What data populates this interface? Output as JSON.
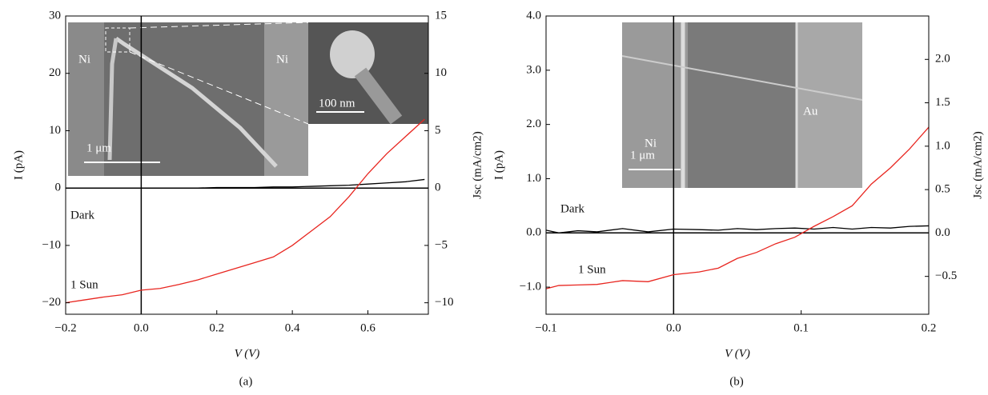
{
  "chart_data": [
    {
      "type": "line",
      "caption": "(a)",
      "x_label": "V (V)",
      "y_label": "I (pA)",
      "y2_label": "Jsc (mA/cm2)",
      "xlim": [
        -0.2,
        0.76
      ],
      "ylim": [
        -22,
        30
      ],
      "y2lim": [
        -11,
        15
      ],
      "xticks": [
        {
          "value": -0.2,
          "label": "−0.2"
        },
        {
          "value": 0,
          "label": "0.0"
        },
        {
          "value": 0.2,
          "label": "0.2"
        },
        {
          "value": 0.4,
          "label": "0.4"
        },
        {
          "value": 0.6,
          "label": "0.6"
        }
      ],
      "yticks": [
        {
          "value": -20,
          "label": "−20"
        },
        {
          "value": -10,
          "label": "−10"
        },
        0,
        10,
        20,
        30
      ],
      "y2ticks": [
        {
          "value": -10,
          "label": "−10"
        },
        {
          "value": -5,
          "label": "−5"
        },
        0,
        5,
        10,
        15
      ],
      "x": [
        -0.2,
        -0.15,
        -0.1,
        -0.05,
        0,
        0.05,
        0.1,
        0.15,
        0.2,
        0.25,
        0.3,
        0.35,
        0.4,
        0.45,
        0.5,
        0.55,
        0.6,
        0.65,
        0.7,
        0.75
      ],
      "series": [
        {
          "name": "Dark",
          "color": "#000000",
          "values": [
            0,
            0,
            0,
            0,
            0,
            0,
            0,
            0,
            0.1,
            0.1,
            0.1,
            0.2,
            0.2,
            0.3,
            0.4,
            0.5,
            0.7,
            0.9,
            1.1,
            1.5
          ]
        },
        {
          "name": "1 Sun",
          "color": "#e8251f",
          "values": [
            -20,
            -19.5,
            -19,
            -18.6,
            -17.8,
            -17.5,
            -16.8,
            -16,
            -15,
            -14,
            -13,
            -12,
            -10,
            -7.5,
            -5,
            -1.5,
            2.5,
            6,
            9,
            12
          ]
        }
      ],
      "annotations": [
        "Ni",
        "Ni",
        "1 μm",
        "100 nm"
      ]
    },
    {
      "type": "line",
      "caption": "(b)",
      "x_label": "V (V)",
      "y_label": "I (pA)",
      "y2_label": "Jsc (mA/cm2)",
      "xlim": [
        -0.1,
        0.2
      ],
      "ylim": [
        -1.5,
        4.0
      ],
      "y2lim": [
        -0.936,
        2.5
      ],
      "xticks": [
        {
          "value": -0.1,
          "label": "−0.1"
        },
        {
          "value": 0,
          "label": "0.0"
        },
        {
          "value": 0.1,
          "label": "0.1"
        },
        {
          "value": 0.2,
          "label": "0.2"
        }
      ],
      "yticks": [
        {
          "value": -1,
          "label": "−1.0"
        },
        {
          "value": 0,
          "label": "0.0"
        },
        {
          "value": 1,
          "label": "1.0"
        },
        {
          "value": 2,
          "label": "2.0"
        },
        {
          "value": 3,
          "label": "3.0"
        },
        {
          "value": 4,
          "label": "4.0"
        }
      ],
      "y2ticks": [
        {
          "value": -0.5,
          "label": "−0.5"
        },
        {
          "value": 0,
          "label": "0.0"
        },
        0.5,
        {
          "value": 1,
          "label": "1.0"
        },
        1.5,
        {
          "value": 2,
          "label": "2.0"
        }
      ],
      "x": [
        -0.1,
        -0.09,
        -0.075,
        -0.06,
        -0.04,
        -0.02,
        0,
        0.02,
        0.035,
        0.05,
        0.065,
        0.08,
        0.095,
        0.11,
        0.125,
        0.14,
        0.155,
        0.17,
        0.185,
        0.2
      ],
      "series": [
        {
          "name": "Dark",
          "color": "#000000",
          "values": [
            0.05,
            0.0,
            0.04,
            0.02,
            0.08,
            0.02,
            0.07,
            0.06,
            0.05,
            0.08,
            0.06,
            0.08,
            0.09,
            0.07,
            0.1,
            0.07,
            0.1,
            0.09,
            0.12,
            0.13
          ]
        },
        {
          "name": "1 Sun",
          "color": "#e8251f",
          "values": [
            -1.03,
            -0.97,
            -0.96,
            -0.95,
            -0.88,
            -0.9,
            -0.77,
            -0.72,
            -0.65,
            -0.47,
            -0.36,
            -0.2,
            -0.08,
            0.12,
            0.3,
            0.5,
            0.9,
            1.2,
            1.55,
            1.95
          ]
        }
      ],
      "annotations": [
        "Ni",
        "Au",
        "1 μm"
      ]
    }
  ]
}
